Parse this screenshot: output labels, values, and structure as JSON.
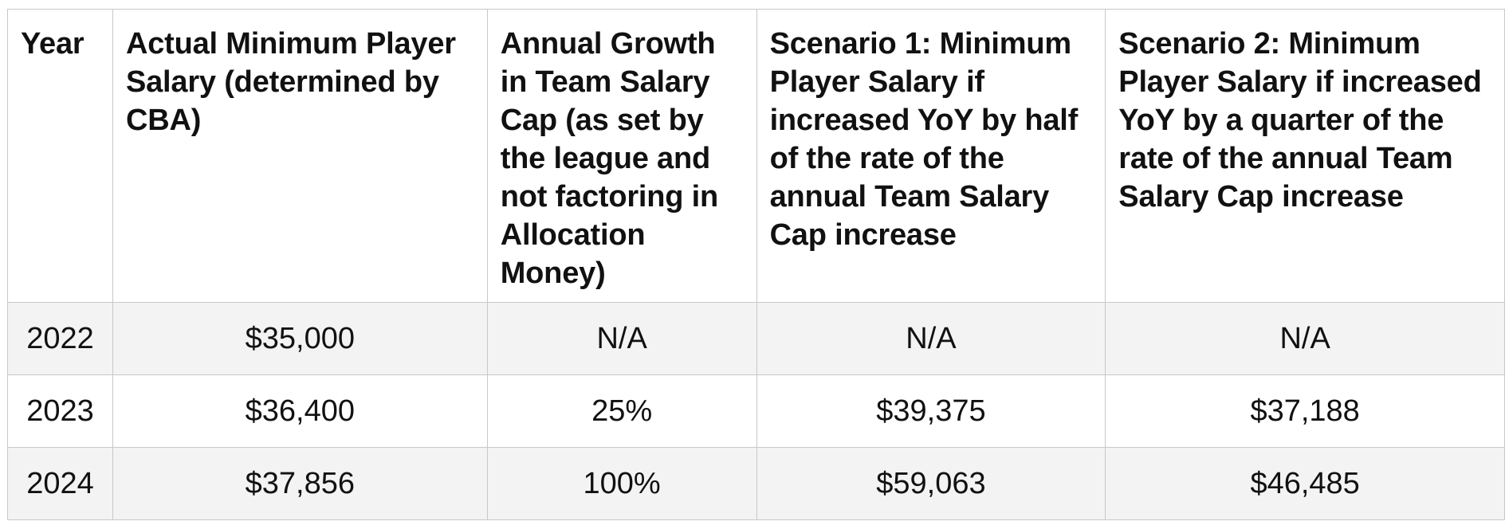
{
  "table": {
    "headers": [
      "Year",
      "Actual Minimum Player Salary (determined by CBA)",
      "Annual Growth in Team Salary Cap (as set by the league and not factoring in Allocation Money)",
      "Scenario 1: Minimum Player Salary if increased YoY by half of the rate of the annual Team Salary Cap increase",
      "Scenario 2: Minimum Player Salary if increased YoY by a quarter of the rate of the annual Team Salary Cap increase"
    ],
    "rows": [
      [
        "2022",
        "$35,000",
        "N/A",
        "N/A",
        "N/A"
      ],
      [
        "2023",
        "$36,400",
        "25%",
        "$39,375",
        "$37,188"
      ],
      [
        "2024",
        "$37,856",
        "100%",
        "$59,063",
        "$46,485"
      ]
    ]
  }
}
